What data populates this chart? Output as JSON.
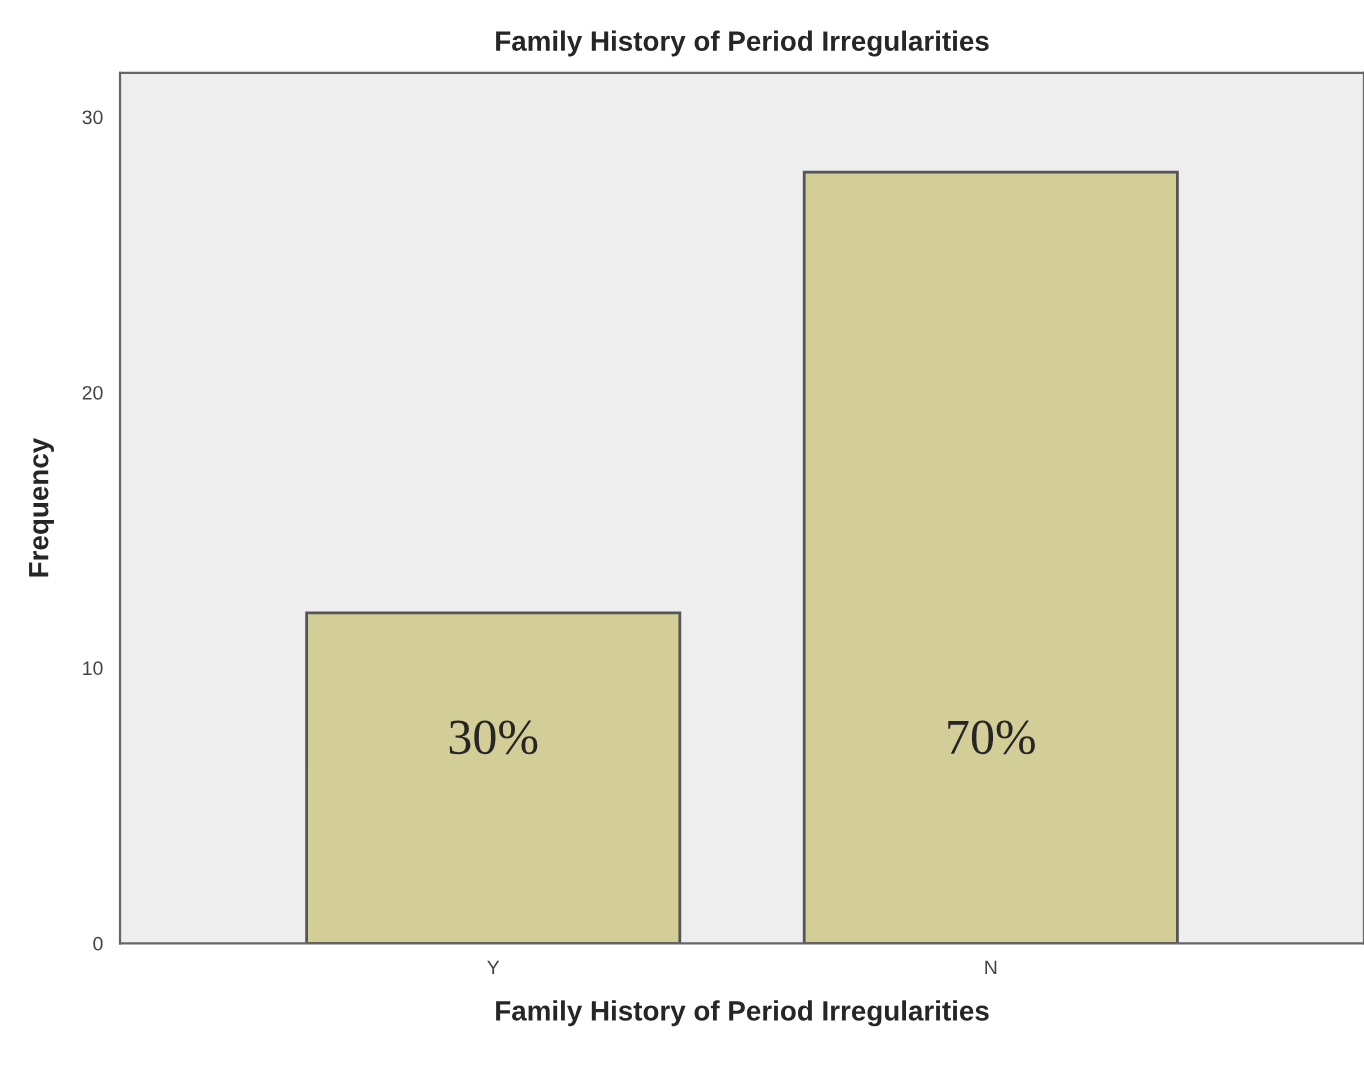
{
  "chart_data": {
    "type": "bar",
    "title": "Family History of Period Irregularities",
    "xlabel": "Family History of Period Irregularities",
    "ylabel": "Frequency",
    "categories": [
      "Y",
      "N"
    ],
    "values": [
      12,
      28
    ],
    "color": "#d3ce97",
    "annotations": [
      "30%",
      "70%"
    ],
    "ylim": [
      0,
      31.6
    ],
    "yticks": [
      0,
      10,
      20,
      30
    ],
    "grid": false,
    "legend": false
  }
}
